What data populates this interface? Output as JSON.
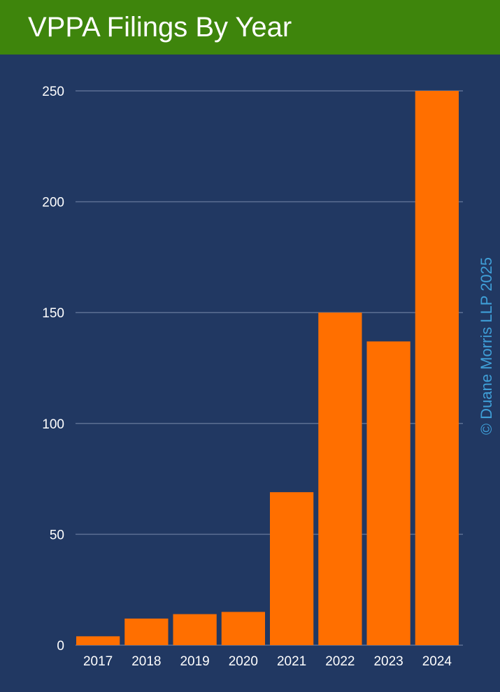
{
  "title": "VPPA Filings By Year",
  "watermark": "© Duane Morris LLP 2025",
  "colors": {
    "header": "#3e850c",
    "background": "#213862",
    "bar": "#ff6f00",
    "watermark": "#3f9fd8",
    "grid": "#5c6f93"
  },
  "chart_data": {
    "type": "bar",
    "title": "VPPA Filings By Year",
    "xlabel": "",
    "ylabel": "",
    "categories": [
      "2017",
      "2018",
      "2019",
      "2020",
      "2021",
      "2022",
      "2023",
      "2024"
    ],
    "values": [
      4,
      12,
      14,
      15,
      69,
      150,
      137,
      250
    ],
    "ylim": [
      0,
      250
    ],
    "yticks": [
      0,
      50,
      100,
      150,
      200,
      250
    ],
    "grid": true,
    "legend": "none"
  }
}
